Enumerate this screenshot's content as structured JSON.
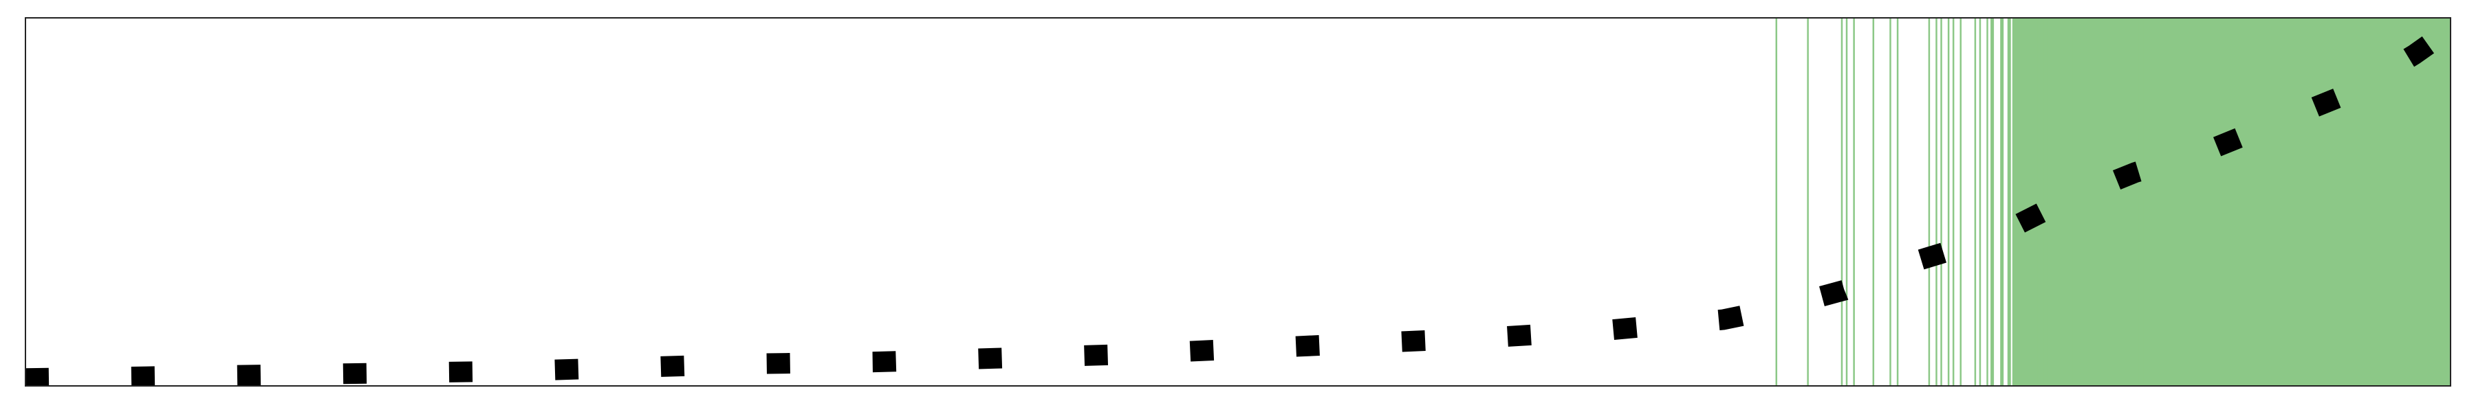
{
  "chart_data": {
    "type": "line",
    "title": "",
    "xlabel": "",
    "ylabel": "",
    "xlim": [
      0,
      100
    ],
    "ylim": [
      0,
      100
    ],
    "grid": false,
    "legend": "none",
    "series": [
      {
        "style": "dashed",
        "color": "#000000",
        "x": [
          0,
          5,
          10,
          15,
          20,
          25,
          30,
          35,
          40,
          45,
          50,
          55,
          60,
          65,
          70,
          72.2,
          75,
          78,
          81,
          84,
          87,
          90,
          93,
          96,
          98.5,
          100
        ],
        "y": [
          2,
          2.5,
          3,
          3.5,
          4,
          5,
          6,
          6.5,
          7.5,
          8.5,
          10,
          11.5,
          13,
          15,
          18,
          21,
          26,
          34,
          40,
          50,
          58,
          64,
          72,
          80,
          90,
          97
        ]
      }
    ],
    "shaded_region": {
      "color": "#8cc887",
      "solid_span": [
        82,
        100
      ],
      "vertical_lines_x": [
        72.2,
        73.5,
        74.9,
        75.1,
        75.4,
        76.2,
        76.9,
        77.2,
        78.5,
        78.8,
        79.0,
        79.3,
        79.5,
        79.8,
        80.4,
        80.6,
        80.9,
        81.1,
        81.5,
        81.8,
        82.0,
        82.4,
        82.6,
        82.9,
        83.3,
        83.8,
        84.2,
        84.5,
        85.0,
        86.3,
        86.8,
        87.2,
        87.4
      ]
    }
  }
}
